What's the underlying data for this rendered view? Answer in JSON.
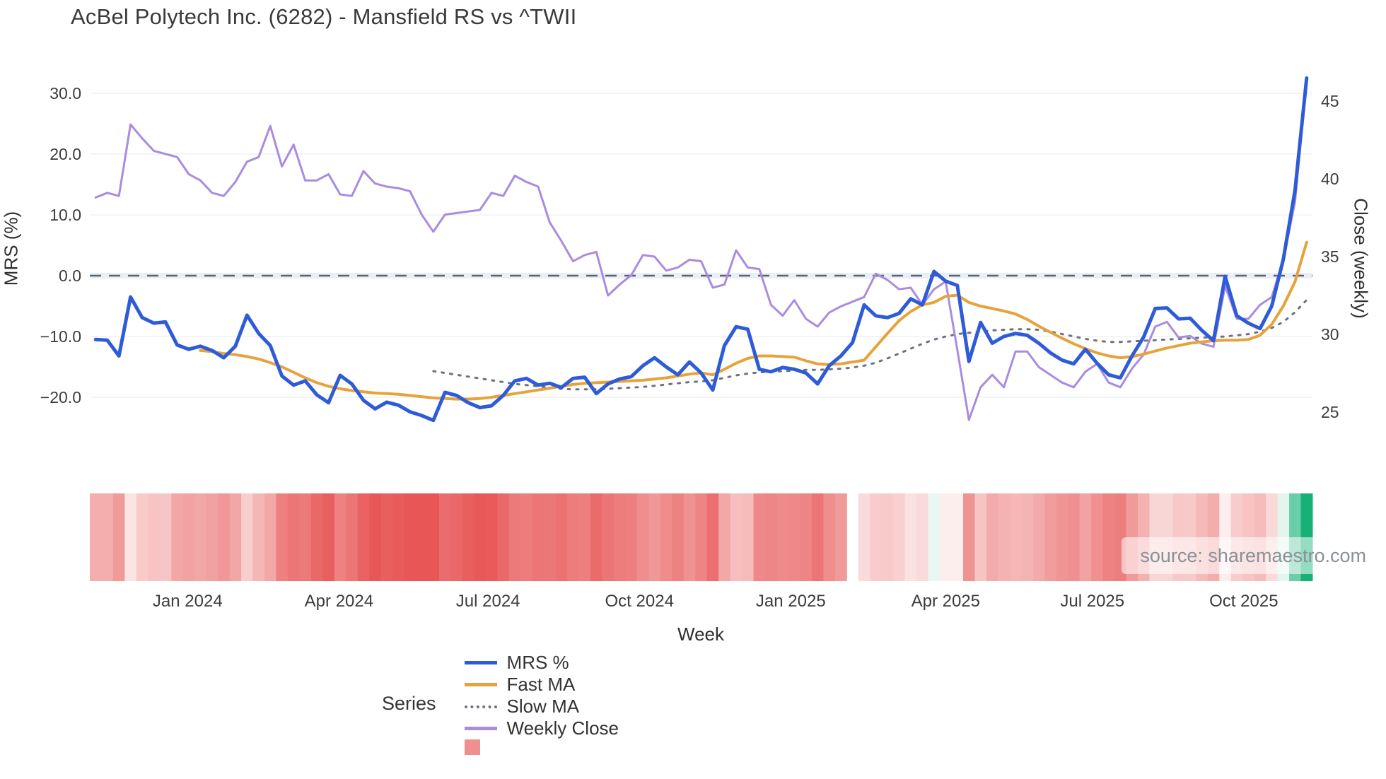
{
  "title": "AcBel Polytech Inc. (6282) - Mansfield RS vs ^TWII",
  "watermark": "source: sharemaestro.com",
  "colors": {
    "background": "#ffffff",
    "title_text": "#3a3a3a",
    "tick_text": "#3d3d3d",
    "gridline": "#ebedf1",
    "zero_dash": "#5c6370",
    "zero_band": "#e9eefb",
    "mrs_line": "#2e5bd7",
    "fast_ma_line": "#e7a33b",
    "slow_ma_line": "#6b7280",
    "weekly_close_line": "#a98ce0",
    "heat_negative": "#e85656",
    "heat_positive": "#17b178",
    "legend_square": "#f08f8f",
    "watermark_text": "#8a9097"
  },
  "legend": {
    "label": "Series",
    "items": [
      {
        "name": "MRS %",
        "style": "solid",
        "color": "#2e5bd7"
      },
      {
        "name": "Fast MA",
        "style": "solid",
        "color": "#e7a33b"
      },
      {
        "name": "Slow MA",
        "style": "dotted",
        "color": "#6b7280"
      },
      {
        "name": "Weekly Close",
        "style": "solid",
        "color": "#a98ce0"
      },
      {
        "name": "heatmap-swatch",
        "style": "square",
        "color": "#f08f8f"
      }
    ]
  },
  "chart_data": {
    "type": "line",
    "title": "AcBel Polytech Inc. (6282) - Mansfield RS vs ^TWII",
    "x_axis": {
      "label": "Week",
      "tick_labels": [
        "Jan 2024",
        "Apr 2024",
        "Jul 2024",
        "Oct 2024",
        "Jan 2025",
        "Apr 2025",
        "Jul 2025",
        "Oct 2025"
      ],
      "tick_weeks": [
        8.4,
        21.4,
        34.2,
        47.2,
        60.2,
        73.5,
        86.1,
        99.1
      ],
      "n_weeks": 105
    },
    "y_left": {
      "label": "MRS (%)",
      "ticks": [
        30,
        20,
        10,
        0,
        -10,
        -20
      ],
      "tick_labels": [
        "30.0",
        "20.0",
        "10.0",
        "0.0",
        "−10.0",
        "−20.0"
      ],
      "zero_line": 0,
      "grid": true
    },
    "y_right": {
      "label": "Close (weekly)",
      "ticks": [
        45,
        40,
        35,
        30,
        25
      ],
      "tick_labels": [
        "45",
        "40",
        "35",
        "30",
        "25"
      ],
      "grid": false
    },
    "series": [
      {
        "name": "Slow MA",
        "axis": "left",
        "style": "dotted",
        "color": "#6b7280",
        "width": 3,
        "values": [
          null,
          null,
          null,
          null,
          null,
          null,
          null,
          null,
          null,
          null,
          null,
          null,
          null,
          null,
          null,
          null,
          null,
          null,
          null,
          null,
          null,
          null,
          null,
          null,
          null,
          null,
          null,
          null,
          null,
          -15.7,
          -16.0,
          -16.3,
          -16.6,
          -16.9,
          -17.2,
          -17.5,
          -17.8,
          -18.0,
          -18.2,
          -18.4,
          -18.6,
          -18.7,
          -18.7,
          -18.7,
          -18.6,
          -18.5,
          -18.4,
          -18.3,
          -18.1,
          -17.9,
          -17.7,
          -17.5,
          -17.4,
          -17.2,
          -16.8,
          -16.4,
          -16.1,
          -15.9,
          -15.8,
          -15.7,
          -15.6,
          -15.5,
          -15.5,
          -15.4,
          -15.3,
          -15.1,
          -14.8,
          -14.3,
          -13.6,
          -12.8,
          -12.0,
          -11.2,
          -10.5,
          -10.0,
          -9.6,
          -9.4,
          -9.2,
          -9.0,
          -8.9,
          -8.8,
          -8.8,
          -8.9,
          -9.2,
          -9.6,
          -10.0,
          -10.4,
          -10.7,
          -10.9,
          -10.9,
          -10.8,
          -10.7,
          -10.6,
          -10.5,
          -10.4,
          -10.3,
          -10.2,
          -10.1,
          -10.0,
          -9.8,
          -9.6,
          -9.2,
          -8.6,
          -7.6,
          -6.0,
          -4.0
        ]
      },
      {
        "name": "Weekly Close",
        "axis": "right",
        "style": "solid",
        "color": "#a98ce0",
        "width": 3,
        "values": [
          38.8,
          39.1,
          38.9,
          43.5,
          42.6,
          41.8,
          41.6,
          41.4,
          40.3,
          39.9,
          39.1,
          38.9,
          39.8,
          41.1,
          41.4,
          43.4,
          40.8,
          42.2,
          39.9,
          39.9,
          40.3,
          39.0,
          38.9,
          40.5,
          39.7,
          39.5,
          39.4,
          39.2,
          37.7,
          36.6,
          37.7,
          37.8,
          37.9,
          38.0,
          39.1,
          38.9,
          40.2,
          39.8,
          39.5,
          37.2,
          36.0,
          34.7,
          35.1,
          35.3,
          32.5,
          33.2,
          33.8,
          35.1,
          35.0,
          34.1,
          34.3,
          34.8,
          34.7,
          33.0,
          33.2,
          35.4,
          34.3,
          34.2,
          31.9,
          31.2,
          32.2,
          31.0,
          30.5,
          31.4,
          31.8,
          32.1,
          32.4,
          33.9,
          33.5,
          32.9,
          33.0,
          31.9,
          32.9,
          33.4,
          29.0,
          24.5,
          26.6,
          27.4,
          26.6,
          28.9,
          28.9,
          27.9,
          27.4,
          26.9,
          26.6,
          27.6,
          28.1,
          26.9,
          26.6,
          27.8,
          28.7,
          30.5,
          30.8,
          29.8,
          29.9,
          29.4,
          29.2,
          33.1,
          31.0,
          31.0,
          31.9,
          32.4,
          34.8,
          38.5,
          46.4
        ]
      },
      {
        "name": "Fast MA",
        "axis": "left",
        "style": "solid",
        "color": "#e7a33b",
        "width": 4,
        "values": [
          null,
          null,
          null,
          null,
          null,
          null,
          null,
          null,
          null,
          -12.3,
          -12.5,
          -12.8,
          -13.0,
          -13.3,
          -13.7,
          -14.3,
          -15.0,
          -15.9,
          -16.8,
          -17.6,
          -18.2,
          -18.6,
          -18.9,
          -19.1,
          -19.3,
          -19.4,
          -19.5,
          -19.7,
          -19.9,
          -20.1,
          -20.2,
          -20.3,
          -20.3,
          -20.2,
          -20.0,
          -19.7,
          -19.4,
          -19.1,
          -18.8,
          -18.5,
          -18.2,
          -17.9,
          -17.7,
          -17.6,
          -17.5,
          -17.4,
          -17.3,
          -17.2,
          -17.0,
          -16.8,
          -16.5,
          -16.2,
          -16.0,
          -16.3,
          -15.4,
          -14.4,
          -13.6,
          -13.2,
          -13.2,
          -13.3,
          -13.4,
          -14.0,
          -14.5,
          -14.6,
          -14.5,
          -14.2,
          -13.9,
          -11.7,
          -9.5,
          -7.4,
          -5.9,
          -4.8,
          -4.4,
          -3.4,
          -3.2,
          -4.4,
          -5.0,
          -5.4,
          -5.8,
          -6.3,
          -7.2,
          -8.3,
          -9.3,
          -10.3,
          -11.2,
          -12.0,
          -12.7,
          -13.2,
          -13.5,
          -13.3,
          -12.9,
          -12.4,
          -11.9,
          -11.5,
          -11.1,
          -10.9,
          -10.7,
          -10.6,
          -10.6,
          -10.5,
          -9.8,
          -8.0,
          -5.0,
          -1.0,
          5.5
        ]
      },
      {
        "name": "MRS %",
        "axis": "left",
        "style": "solid",
        "color": "#2e5bd7",
        "width": 5,
        "values": [
          -10.5,
          -10.6,
          -13.2,
          -3.5,
          -6.9,
          -7.8,
          -7.6,
          -11.4,
          -12.1,
          -11.6,
          -12.3,
          -13.5,
          -11.6,
          -6.5,
          -9.5,
          -11.5,
          -16.5,
          -18.0,
          -17.3,
          -19.6,
          -20.9,
          -16.4,
          -17.8,
          -20.5,
          -21.9,
          -20.8,
          -21.3,
          -22.4,
          -23.0,
          -23.8,
          -19.2,
          -19.7,
          -20.9,
          -21.7,
          -21.4,
          -19.7,
          -17.3,
          -16.9,
          -18.0,
          -17.7,
          -18.4,
          -16.9,
          -16.7,
          -19.4,
          -17.8,
          -17.0,
          -16.6,
          -14.8,
          -13.5,
          -15.0,
          -16.3,
          -14.2,
          -16.0,
          -18.8,
          -11.5,
          -8.4,
          -8.8,
          -15.4,
          -15.8,
          -15.1,
          -15.4,
          -16.0,
          -17.8,
          -14.8,
          -13.2,
          -11.0,
          -4.8,
          -6.6,
          -6.9,
          -6.2,
          -3.8,
          -4.8,
          0.7,
          -0.9,
          -1.6,
          -14.1,
          -7.7,
          -11.1,
          -10.0,
          -9.5,
          -9.8,
          -11.1,
          -12.7,
          -13.9,
          -14.5,
          -12.1,
          -14.4,
          -16.3,
          -16.8,
          -13.2,
          -10.1,
          -5.4,
          -5.3,
          -7.1,
          -7.0,
          -9.0,
          -10.7,
          -0.1,
          -6.6,
          -7.8,
          -8.7,
          -5.0,
          2.7,
          14.0,
          32.5
        ]
      }
    ],
    "heatmap": {
      "source_series": "MRS %",
      "gap_week": 65,
      "negative_color": "#e85656",
      "positive_color": "#17b178",
      "description": "weekly strip colored by MRS % (red negative, green positive)"
    },
    "legend_position": "bottom",
    "grid": true
  }
}
